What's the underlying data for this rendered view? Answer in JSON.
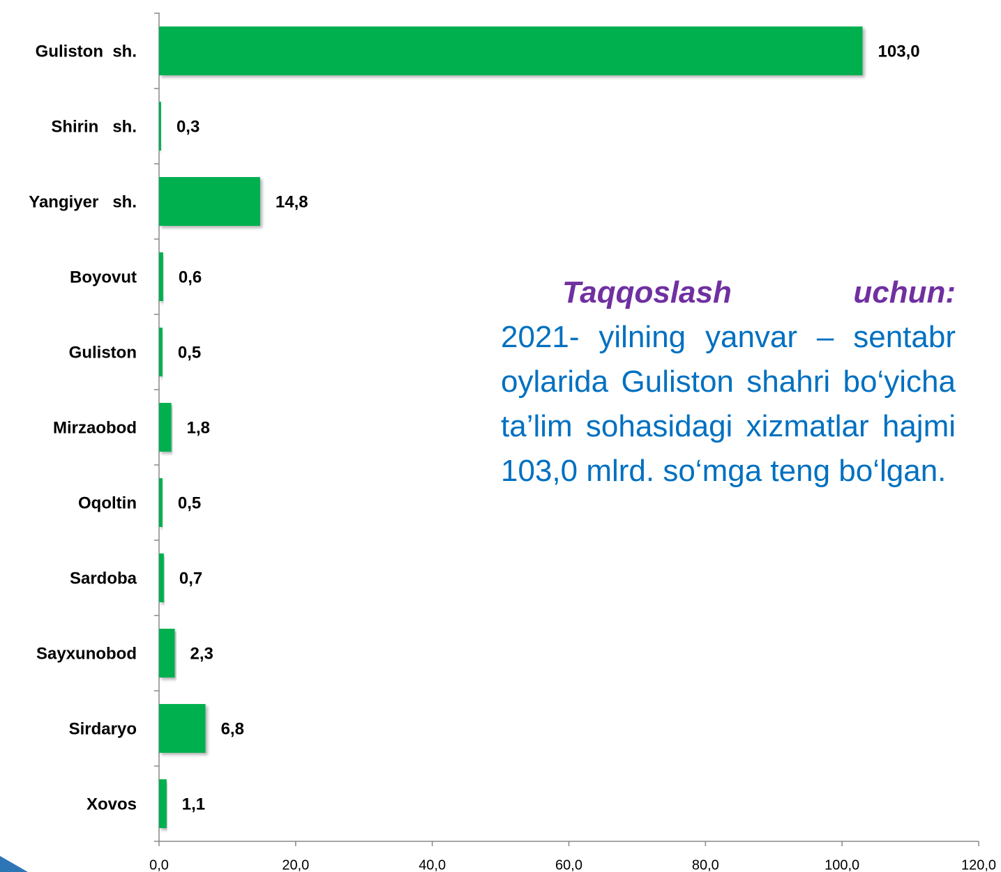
{
  "chart_data": {
    "type": "bar",
    "orientation": "horizontal",
    "categories": [
      "Guliston  sh.",
      "Shirin   sh.",
      "Yangiyer   sh.",
      "Boyovut",
      "Guliston",
      "Mirzaobod",
      "Oqoltin",
      "Sardoba",
      "Sayxunobod",
      "Sirdaryo",
      "Xovos"
    ],
    "values": [
      103.0,
      0.3,
      14.8,
      0.6,
      0.5,
      1.8,
      0.5,
      0.7,
      2.3,
      6.8,
      1.1
    ],
    "value_labels": [
      "103,0",
      "0,3",
      "14,8",
      "0,6",
      "0,5",
      "1,8",
      "0,5",
      "0,7",
      "2,3",
      "6,8",
      "1,1"
    ],
    "color": "#00b050",
    "xlim": [
      0,
      120
    ],
    "xticks": [
      {
        "value": 0,
        "label": "0,0"
      },
      {
        "value": 20,
        "label": "20,0"
      },
      {
        "value": 40,
        "label": "40,0"
      },
      {
        "value": 60,
        "label": "60,0"
      },
      {
        "value": 80,
        "label": "80,0"
      },
      {
        "value": 100,
        "label": "100,0"
      },
      {
        "value": 120,
        "label": "120,0"
      }
    ],
    "grid": false,
    "annotation_title": "Taqqoslash uchun:",
    "annotation": "2021- yilning yanvar – sentabr oylarida Guliston shahri bo‘yicha ta’lim sohasidagi xizmatlar hajmi 103,0 mlrd. so‘mga teng bo‘lgan."
  }
}
